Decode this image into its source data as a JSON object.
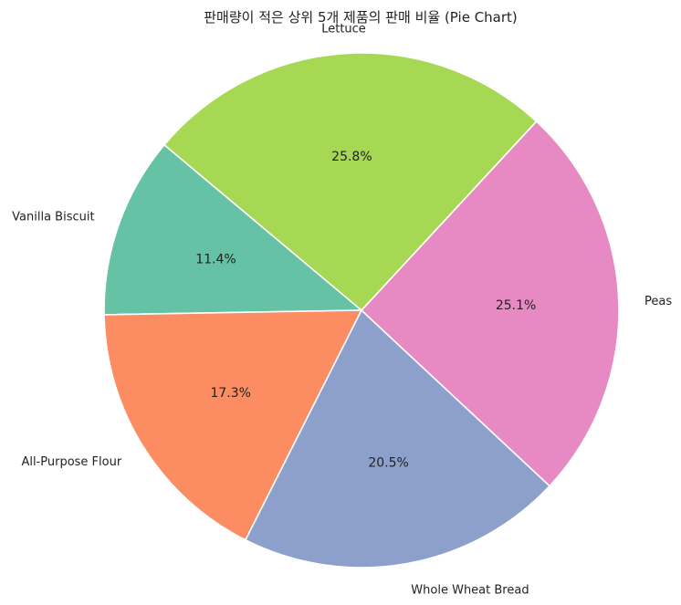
{
  "chart_data": {
    "type": "pie",
    "title": "판매량이 적은 상위 5개 제품의 판매 비율 (Pie Chart)",
    "start_angle_deg": 140,
    "direction": "counterclockwise",
    "slices": [
      {
        "label": "Vanilla Biscuit",
        "value": 11.4,
        "pct_label": "11.4%",
        "color": "#66c2a5"
      },
      {
        "label": "All-Purpose Flour",
        "value": 17.3,
        "pct_label": "17.3%",
        "color": "#fc8d62"
      },
      {
        "label": "Whole Wheat Bread",
        "value": 20.5,
        "pct_label": "20.5%",
        "color": "#8da0cb"
      },
      {
        "label": "Peas",
        "value": 25.1,
        "pct_label": "25.1%",
        "color": "#e78ac3"
      },
      {
        "label": "Lettuce",
        "value": 25.8,
        "pct_label": "25.8%",
        "color": "#a6d854"
      }
    ]
  }
}
